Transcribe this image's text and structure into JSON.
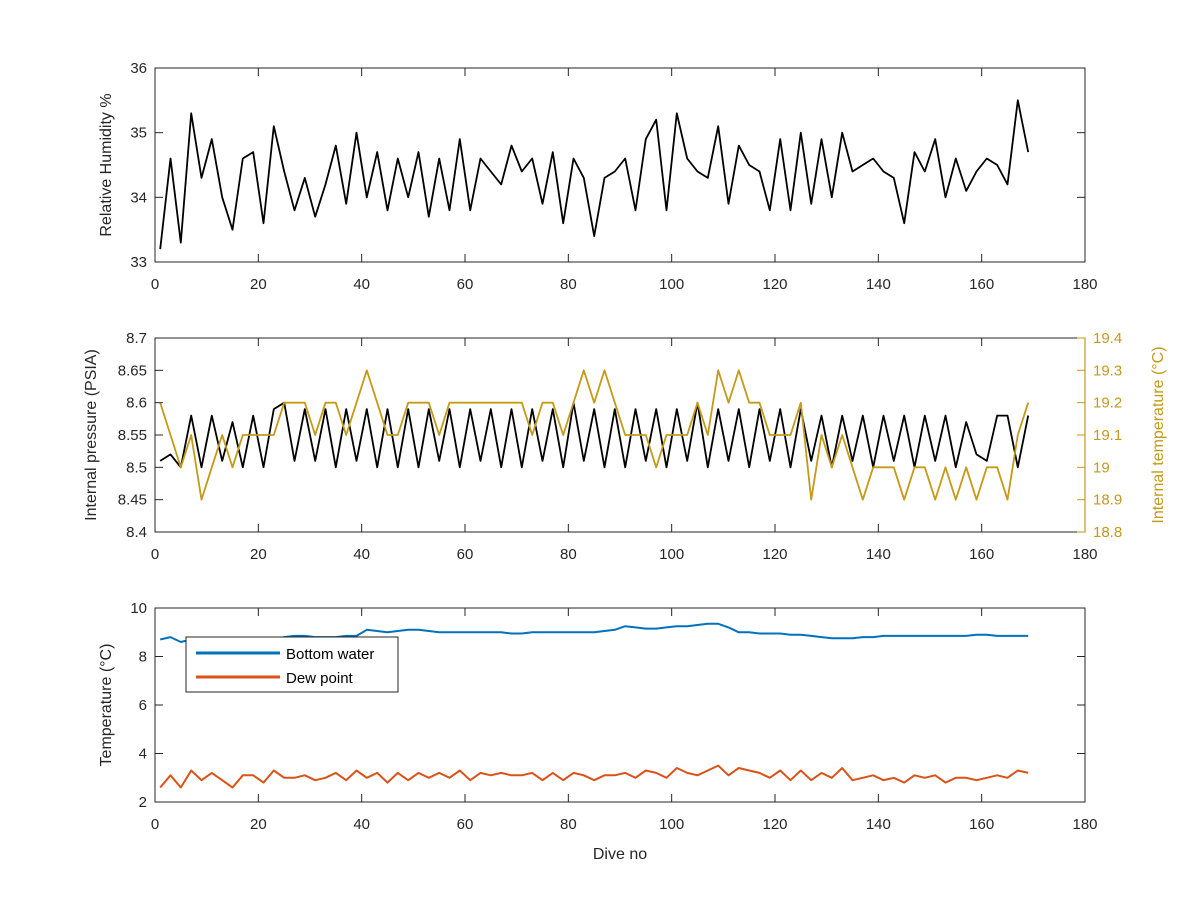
{
  "chart_data": [
    {
      "type": "line",
      "xlabel": "",
      "ylabel": "Relative Humidity %",
      "xlim": [
        0,
        180
      ],
      "ylim": [
        33,
        36
      ],
      "xticks": [
        "0",
        "20",
        "40",
        "60",
        "80",
        "100",
        "120",
        "140",
        "160",
        "180"
      ],
      "yticks": [
        "33",
        "34",
        "35",
        "36"
      ],
      "grid": false,
      "series": [
        {
          "color": "#000000",
          "x": [
            1,
            3,
            5,
            7,
            9,
            11,
            13,
            15,
            17,
            19,
            21,
            23,
            25,
            27,
            29,
            31,
            33,
            35,
            37,
            39,
            41,
            43,
            45,
            47,
            49,
            51,
            53,
            55,
            57,
            59,
            61,
            63,
            65,
            67,
            69,
            71,
            73,
            75,
            77,
            79,
            81,
            83,
            85,
            87,
            89,
            91,
            93,
            95,
            97,
            99,
            101,
            103,
            105,
            107,
            109,
            111,
            113,
            115,
            117,
            119,
            121,
            123,
            125,
            127,
            129,
            131,
            133,
            135,
            137,
            139,
            141,
            143,
            145,
            147,
            149,
            151,
            153,
            155,
            157,
            159,
            161,
            163,
            165,
            167,
            169
          ],
          "values": [
            33.2,
            34.6,
            33.3,
            35.3,
            34.3,
            34.9,
            34.0,
            33.5,
            34.6,
            34.7,
            33.6,
            35.1,
            34.4,
            33.8,
            34.3,
            33.7,
            34.2,
            34.8,
            33.9,
            35.0,
            34.0,
            34.7,
            33.8,
            34.6,
            34.0,
            34.7,
            33.7,
            34.6,
            33.8,
            34.9,
            33.8,
            34.6,
            34.4,
            34.2,
            34.8,
            34.4,
            34.6,
            33.9,
            34.7,
            33.6,
            34.6,
            34.3,
            33.4,
            34.3,
            34.4,
            34.6,
            33.8,
            34.9,
            35.2,
            33.8,
            35.3,
            34.6,
            34.4,
            34.3,
            35.1,
            33.9,
            34.8,
            34.5,
            34.4,
            33.8,
            34.9,
            33.8,
            35.0,
            33.9,
            34.9,
            34.0,
            35.0,
            34.4,
            34.5,
            34.6,
            34.4,
            34.3,
            33.6,
            34.7,
            34.4,
            34.9,
            34.0,
            34.6,
            34.1,
            34.4,
            34.6,
            34.5,
            34.2,
            35.5,
            34.7
          ]
        }
      ]
    },
    {
      "type": "line",
      "xlabel": "",
      "ylabel": "Internal pressure (PSIA)",
      "y2label": "Internal temperature (°C)",
      "xlim": [
        0,
        180
      ],
      "ylim": [
        8.4,
        8.7
      ],
      "y2lim": [
        18.8,
        19.4
      ],
      "xticks": [
        "0",
        "20",
        "40",
        "60",
        "80",
        "100",
        "120",
        "140",
        "160",
        "180"
      ],
      "yticks": [
        "8.4",
        "8.45",
        "8.5",
        "8.55",
        "8.6",
        "8.65",
        "8.7"
      ],
      "y2ticks": [
        "18.8",
        "18.9",
        "19",
        "19.1",
        "19.2",
        "19.3",
        "19.4"
      ],
      "grid": false,
      "series": [
        {
          "axis": "left",
          "color": "#000000",
          "x": [
            1,
            3,
            5,
            7,
            9,
            11,
            13,
            15,
            17,
            19,
            21,
            23,
            25,
            27,
            29,
            31,
            33,
            35,
            37,
            39,
            41,
            43,
            45,
            47,
            49,
            51,
            53,
            55,
            57,
            59,
            61,
            63,
            65,
            67,
            69,
            71,
            73,
            75,
            77,
            79,
            81,
            83,
            85,
            87,
            89,
            91,
            93,
            95,
            97,
            99,
            101,
            103,
            105,
            107,
            109,
            111,
            113,
            115,
            117,
            119,
            121,
            123,
            125,
            127,
            129,
            131,
            133,
            135,
            137,
            139,
            141,
            143,
            145,
            147,
            149,
            151,
            153,
            155,
            157,
            159,
            161,
            163,
            165,
            167,
            169
          ],
          "values": [
            8.51,
            8.52,
            8.5,
            8.58,
            8.5,
            8.58,
            8.51,
            8.57,
            8.5,
            8.58,
            8.5,
            8.59,
            8.6,
            8.51,
            8.59,
            8.51,
            8.59,
            8.5,
            8.59,
            8.51,
            8.59,
            8.5,
            8.59,
            8.5,
            8.59,
            8.5,
            8.59,
            8.51,
            8.59,
            8.5,
            8.59,
            8.51,
            8.59,
            8.5,
            8.59,
            8.5,
            8.59,
            8.51,
            8.59,
            8.5,
            8.6,
            8.51,
            8.59,
            8.5,
            8.59,
            8.5,
            8.59,
            8.51,
            8.59,
            8.5,
            8.59,
            8.51,
            8.6,
            8.5,
            8.59,
            8.51,
            8.59,
            8.5,
            8.59,
            8.51,
            8.59,
            8.5,
            8.59,
            8.51,
            8.58,
            8.5,
            8.58,
            8.51,
            8.58,
            8.5,
            8.58,
            8.51,
            8.58,
            8.5,
            8.58,
            8.51,
            8.58,
            8.5,
            8.57,
            8.52,
            8.51,
            8.58,
            8.58,
            8.5,
            8.58
          ]
        },
        {
          "axis": "right",
          "color": "#C49A1A",
          "x": [
            1,
            3,
            5,
            7,
            9,
            11,
            13,
            15,
            17,
            19,
            21,
            23,
            25,
            27,
            29,
            31,
            33,
            35,
            37,
            39,
            41,
            43,
            45,
            47,
            49,
            51,
            53,
            55,
            57,
            59,
            61,
            63,
            65,
            67,
            69,
            71,
            73,
            75,
            77,
            79,
            81,
            83,
            85,
            87,
            89,
            91,
            93,
            95,
            97,
            99,
            101,
            103,
            105,
            107,
            109,
            111,
            113,
            115,
            117,
            119,
            121,
            123,
            125,
            127,
            129,
            131,
            133,
            135,
            137,
            139,
            141,
            143,
            145,
            147,
            149,
            151,
            153,
            155,
            157,
            159,
            161,
            163,
            165,
            167,
            169
          ],
          "values": [
            19.2,
            19.1,
            19.0,
            19.1,
            18.9,
            19.0,
            19.1,
            19.0,
            19.1,
            19.1,
            19.1,
            19.1,
            19.2,
            19.2,
            19.2,
            19.1,
            19.2,
            19.2,
            19.1,
            19.2,
            19.3,
            19.2,
            19.1,
            19.1,
            19.2,
            19.2,
            19.2,
            19.1,
            19.2,
            19.2,
            19.2,
            19.2,
            19.2,
            19.2,
            19.2,
            19.2,
            19.1,
            19.2,
            19.2,
            19.1,
            19.2,
            19.3,
            19.2,
            19.3,
            19.2,
            19.1,
            19.1,
            19.1,
            19.0,
            19.1,
            19.1,
            19.1,
            19.2,
            19.1,
            19.3,
            19.2,
            19.3,
            19.2,
            19.2,
            19.1,
            19.1,
            19.1,
            19.2,
            18.9,
            19.1,
            19.0,
            19.1,
            19.0,
            18.9,
            19.0,
            19.0,
            19.0,
            18.9,
            19.0,
            19.0,
            18.9,
            19.0,
            18.9,
            19.0,
            18.9,
            19.0,
            19.0,
            18.9,
            19.1,
            19.2
          ]
        }
      ]
    },
    {
      "type": "line",
      "xlabel": "Dive no",
      "ylabel": "Temperature (°C)",
      "xlim": [
        0,
        180
      ],
      "ylim": [
        2,
        10
      ],
      "xticks": [
        "0",
        "20",
        "40",
        "60",
        "80",
        "100",
        "120",
        "140",
        "160",
        "180"
      ],
      "yticks": [
        "2",
        "4",
        "6",
        "8",
        "10"
      ],
      "grid": false,
      "legend": "top-left",
      "series": [
        {
          "name": "Bottom water",
          "color": "#0072BD",
          "x": [
            1,
            3,
            5,
            7,
            9,
            11,
            13,
            15,
            17,
            19,
            21,
            23,
            25,
            27,
            29,
            31,
            33,
            35,
            37,
            39,
            41,
            43,
            45,
            47,
            49,
            51,
            53,
            55,
            57,
            59,
            61,
            63,
            65,
            67,
            69,
            71,
            73,
            75,
            77,
            79,
            81,
            83,
            85,
            87,
            89,
            91,
            93,
            95,
            97,
            99,
            101,
            103,
            105,
            107,
            109,
            111,
            113,
            115,
            117,
            119,
            121,
            123,
            125,
            127,
            129,
            131,
            133,
            135,
            137,
            139,
            141,
            143,
            145,
            147,
            149,
            151,
            153,
            155,
            157,
            159,
            161,
            163,
            165,
            167,
            169
          ],
          "values": [
            8.7,
            8.8,
            8.6,
            8.7,
            8.7,
            8.6,
            8.6,
            8.6,
            8.6,
            8.6,
            8.7,
            8.7,
            8.8,
            8.85,
            8.85,
            8.8,
            8.8,
            8.8,
            8.85,
            8.85,
            9.1,
            9.05,
            9.0,
            9.05,
            9.1,
            9.1,
            9.05,
            9.0,
            9.0,
            9.0,
            9.0,
            9.0,
            9.0,
            9.0,
            8.95,
            8.95,
            9.0,
            9.0,
            9.0,
            9.0,
            9.0,
            9.0,
            9.0,
            9.05,
            9.1,
            9.25,
            9.2,
            9.15,
            9.15,
            9.2,
            9.25,
            9.25,
            9.3,
            9.35,
            9.35,
            9.2,
            9.0,
            9.0,
            8.95,
            8.95,
            8.95,
            8.9,
            8.9,
            8.85,
            8.8,
            8.75,
            8.75,
            8.75,
            8.8,
            8.8,
            8.85,
            8.85,
            8.85,
            8.85,
            8.85,
            8.85,
            8.85,
            8.85,
            8.85,
            8.9,
            8.9,
            8.85,
            8.85,
            8.85,
            8.85
          ]
        },
        {
          "name": "Dew point",
          "color": "#D95319",
          "x": [
            1,
            3,
            5,
            7,
            9,
            11,
            13,
            15,
            17,
            19,
            21,
            23,
            25,
            27,
            29,
            31,
            33,
            35,
            37,
            39,
            41,
            43,
            45,
            47,
            49,
            51,
            53,
            55,
            57,
            59,
            61,
            63,
            65,
            67,
            69,
            71,
            73,
            75,
            77,
            79,
            81,
            83,
            85,
            87,
            89,
            91,
            93,
            95,
            97,
            99,
            101,
            103,
            105,
            107,
            109,
            111,
            113,
            115,
            117,
            119,
            121,
            123,
            125,
            127,
            129,
            131,
            133,
            135,
            137,
            139,
            141,
            143,
            145,
            147,
            149,
            151,
            153,
            155,
            157,
            159,
            161,
            163,
            165,
            167,
            169
          ],
          "values": [
            2.6,
            3.1,
            2.6,
            3.3,
            2.9,
            3.2,
            2.9,
            2.6,
            3.1,
            3.1,
            2.8,
            3.3,
            3.0,
            3.0,
            3.1,
            2.9,
            3.0,
            3.2,
            2.9,
            3.3,
            3.0,
            3.2,
            2.8,
            3.2,
            2.9,
            3.2,
            3.0,
            3.2,
            3.0,
            3.3,
            2.9,
            3.2,
            3.1,
            3.2,
            3.1,
            3.1,
            3.2,
            2.9,
            3.2,
            2.9,
            3.2,
            3.1,
            2.9,
            3.1,
            3.1,
            3.2,
            3.0,
            3.3,
            3.2,
            3.0,
            3.4,
            3.2,
            3.1,
            3.3,
            3.5,
            3.1,
            3.4,
            3.3,
            3.2,
            3.0,
            3.3,
            2.9,
            3.3,
            2.9,
            3.2,
            3.0,
            3.4,
            2.9,
            3.0,
            3.1,
            2.9,
            3.0,
            2.8,
            3.1,
            3.0,
            3.1,
            2.8,
            3.0,
            3.0,
            2.9,
            3.0,
            3.1,
            3.0,
            3.3,
            3.2
          ]
        }
      ]
    }
  ]
}
